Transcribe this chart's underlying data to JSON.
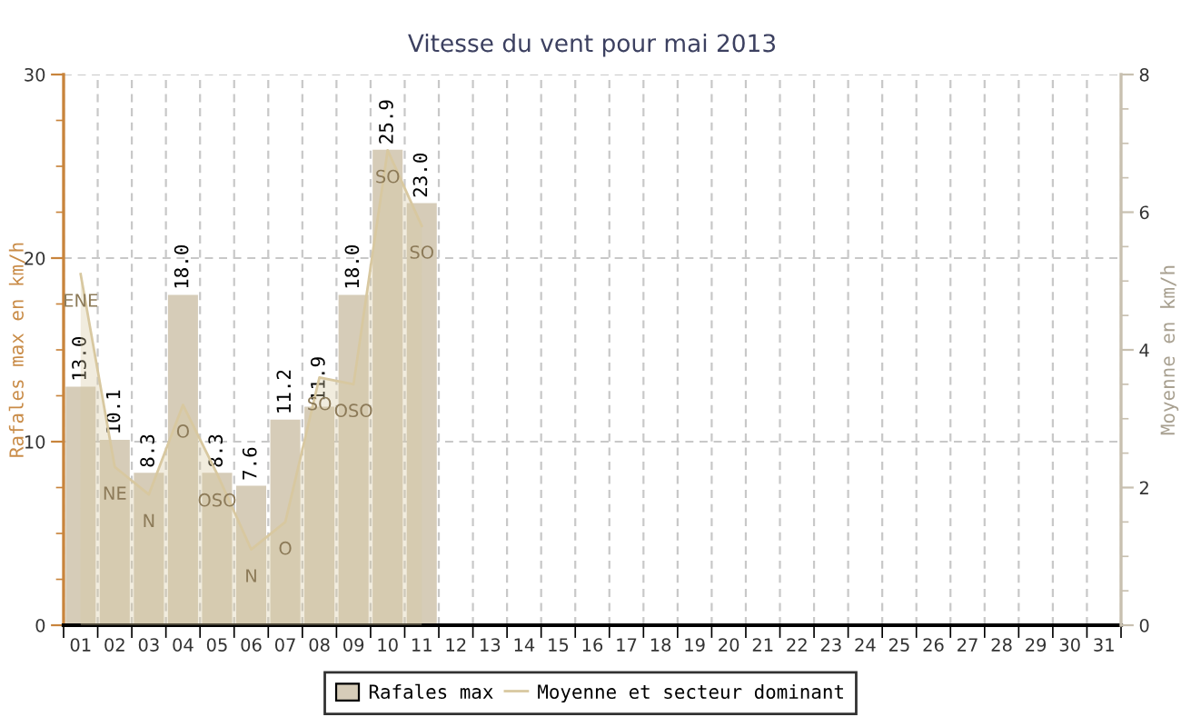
{
  "chart_data": {
    "type": "bar",
    "title": "Vitesse du vent pour mai 2013",
    "ylabel": "Rafales max en km/h",
    "y2label": "Moyenne en km/h",
    "categories": [
      "01",
      "02",
      "03",
      "04",
      "05",
      "06",
      "07",
      "08",
      "09",
      "10",
      "11",
      "12",
      "13",
      "14",
      "15",
      "16",
      "17",
      "18",
      "19",
      "20",
      "21",
      "22",
      "23",
      "24",
      "25",
      "26",
      "27",
      "28",
      "29",
      "30",
      "31"
    ],
    "series": [
      {
        "name": "Rafales max",
        "color": "#d6ccb8",
        "values": [
          13.0,
          10.1,
          8.3,
          18.0,
          8.3,
          7.6,
          11.2,
          11.9,
          18.0,
          25.9,
          23.0,
          null,
          null,
          null,
          null,
          null,
          null,
          null,
          null,
          null,
          null,
          null,
          null,
          null,
          null,
          null,
          null,
          null,
          null,
          null,
          null
        ],
        "value_labels": [
          "13.0",
          "10.1",
          "8.3",
          "18.0",
          "8.3",
          "7.6",
          "11.2",
          "11.9",
          "18.0",
          "25.9",
          "23.0",
          null,
          null,
          null,
          null,
          null,
          null,
          null,
          null,
          null,
          null,
          null,
          null,
          null,
          null,
          null,
          null,
          null,
          null,
          null,
          null
        ]
      },
      {
        "name": "Moyenne et secteur dominant",
        "type": "area",
        "axis": "y2",
        "color": "#d8c8a0",
        "values": [
          5.1,
          2.3,
          1.9,
          3.2,
          2.2,
          1.1,
          1.5,
          3.6,
          3.5,
          6.9,
          5.8,
          null,
          null,
          null,
          null,
          null,
          null,
          null,
          null,
          null,
          null,
          null,
          null,
          null,
          null,
          null,
          null,
          null,
          null,
          null,
          null
        ],
        "value_labels": [
          "ENE",
          "NE",
          "N",
          "O",
          "OSO",
          "N",
          "O",
          "SO",
          "OSO",
          "SO",
          "SO",
          null,
          null,
          null,
          null,
          null,
          null,
          null,
          null,
          null,
          null,
          null,
          null,
          null,
          null,
          null,
          null,
          null,
          null,
          null,
          null
        ]
      }
    ],
    "ylim": [
      0,
      30
    ],
    "yticks": [
      0,
      {
        "value": 2.5,
        "label": null
      },
      {
        "value": 5,
        "label": null
      },
      {
        "value": 7.5,
        "label": null
      },
      10,
      {
        "value": 12.5,
        "label": null
      },
      {
        "value": 15,
        "label": null
      },
      {
        "value": 17.5,
        "label": null
      },
      20,
      {
        "value": 22.5,
        "label": null
      },
      {
        "value": 25,
        "label": null
      },
      {
        "value": 27.5,
        "label": null
      },
      30
    ],
    "y2lim": [
      0,
      8
    ],
    "y2ticks": [
      0,
      {
        "value": 0.5,
        "label": null
      },
      {
        "value": 1,
        "label": null
      },
      {
        "value": 1.5,
        "label": null
      },
      2,
      {
        "value": 2.5,
        "label": null
      },
      {
        "value": 3,
        "label": null
      },
      {
        "value": 3.5,
        "label": null
      },
      4,
      {
        "value": 4.5,
        "label": null
      },
      {
        "value": 5,
        "label": null
      },
      {
        "value": 5.5,
        "label": null
      },
      6,
      {
        "value": 6.5,
        "label": null
      },
      {
        "value": 7,
        "label": null
      },
      {
        "value": 7.5,
        "label": null
      },
      8
    ],
    "grid": true,
    "legend": "bottom"
  }
}
